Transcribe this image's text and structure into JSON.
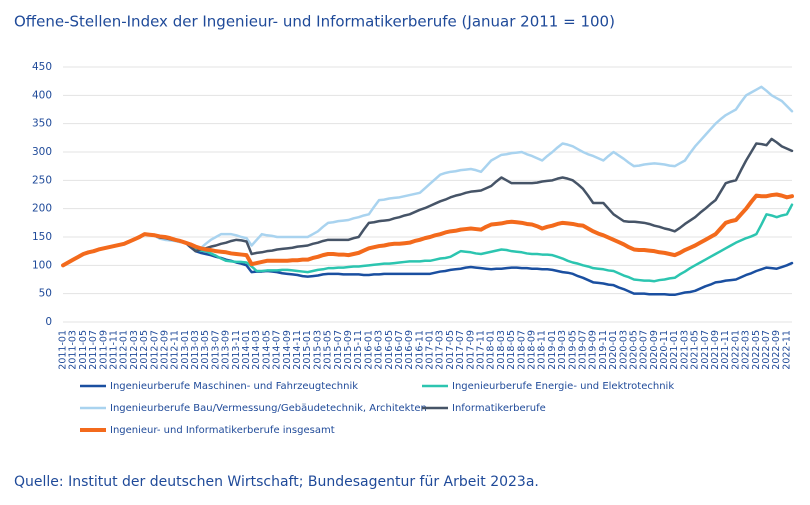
{
  "chart_data": {
    "type": "line",
    "title": "Offene-Stellen-Index der Ingenieur- und Informatikerberufe (Januar 2011 = 100)",
    "source": "Quelle: Institut der deutschen Wirtschaft; Bundesagentur für Arbeit 2023a.",
    "ylim": [
      0,
      450
    ],
    "yticks": [
      0,
      50,
      100,
      150,
      200,
      250,
      300,
      350,
      400,
      450
    ],
    "grid": true,
    "categories": [
      "2011-01",
      null,
      "2011-03",
      null,
      "2011-05",
      null,
      "2011-07",
      null,
      "2011-09",
      null,
      "2011-11",
      null,
      "2012-01",
      null,
      "2012-03",
      null,
      "2012-05",
      null,
      "2012-07",
      null,
      "2012-09",
      null,
      "2012-11",
      null,
      "2013-01",
      null,
      "2013-03",
      null,
      "2013-05",
      null,
      "2013-07",
      null,
      "2013-09",
      null,
      "2013-11",
      null,
      "2014-01",
      null,
      "2014-03",
      null,
      "2014-05",
      null,
      "2014-07",
      null,
      "2014-09",
      null,
      "2014-11",
      null,
      "2015-01",
      null,
      "2015-03",
      null,
      "2015-05",
      null,
      "2015-07",
      null,
      "2015-09",
      null,
      "2015-11",
      null,
      "2016-01",
      null,
      "2016-03",
      null,
      "2016-05",
      null,
      "2016-07",
      null,
      "2016-09",
      null,
      "2016-11",
      null,
      "2017-01",
      null,
      "2017-03",
      null,
      "2017-05",
      null,
      "2017-07",
      null,
      "2017-09",
      null,
      "2017-11",
      null,
      "2018-01",
      null,
      "2018-03",
      null,
      "2018-05",
      null,
      "2018-07",
      null,
      "2018-09",
      null,
      "2018-11",
      null,
      "2019-01",
      null,
      "2019-03",
      null,
      "2019-05",
      null,
      "2019-07",
      null,
      "2019-09",
      null,
      "2019-11",
      null,
      "2020-01",
      null,
      "2020-03",
      null,
      "2020-05",
      null,
      "2020-07",
      null,
      "2020-09",
      null,
      "2020-11",
      null,
      "2021-01",
      null,
      "2021-03",
      null,
      "2021-05",
      null,
      "2021-07",
      null,
      "2021-09",
      null,
      "2021-11",
      null,
      "2022-01",
      null,
      "2022-03",
      null,
      "2022-05",
      null,
      "2022-07",
      null,
      "2022-09",
      null,
      "2022-11",
      null
    ],
    "series": [
      {
        "name": "Ingenieurberufe Maschinen- und Fahrzeugtechnik",
        "color": "#1a4fa0",
        "width": 2.5,
        "values": [
          100,
          105,
          110,
          115,
          120,
          123,
          125,
          128,
          130,
          132,
          134,
          136,
          138,
          142,
          146,
          150,
          155,
          154,
          153,
          151,
          150,
          148,
          145,
          143,
          140,
          132,
          125,
          122,
          120,
          118,
          115,
          113,
          110,
          108,
          105,
          103,
          100,
          88,
          89,
          89,
          90,
          89,
          88,
          86,
          85,
          84,
          83,
          81,
          80,
          81,
          82,
          84,
          85,
          85,
          85,
          84,
          84,
          84,
          84,
          83,
          83,
          84,
          84,
          85,
          85,
          85,
          85,
          85,
          85,
          85,
          85,
          85,
          85,
          87,
          89,
          90,
          92,
          93,
          94,
          96,
          97,
          96,
          95,
          94,
          93,
          94,
          94,
          95,
          96,
          96,
          95,
          95,
          94,
          94,
          93,
          93,
          92,
          90,
          88,
          87,
          85,
          81,
          78,
          74,
          70,
          69,
          68,
          66,
          65,
          61,
          58,
          54,
          50,
          50,
          50,
          49,
          49,
          49,
          49,
          48,
          48,
          50,
          52,
          53,
          55,
          59,
          63,
          66,
          70,
          71,
          73,
          74,
          75,
          79,
          83,
          86,
          90,
          93,
          96,
          95,
          94,
          97,
          100,
          104
        ]
      },
      {
        "name": "Ingenieurberufe Energie- und Elektrotechnik",
        "color": "#2cc5b0",
        "width": 2.5,
        "values": [
          100,
          105,
          110,
          115,
          120,
          123,
          125,
          128,
          130,
          132,
          134,
          136,
          138,
          142,
          146,
          150,
          155,
          154,
          153,
          151,
          150,
          148,
          145,
          143,
          140,
          134,
          128,
          126,
          125,
          121,
          117,
          112,
          108,
          107,
          106,
          106,
          105,
          98,
          90,
          90,
          91,
          91,
          91,
          92,
          92,
          91,
          90,
          89,
          88,
          90,
          92,
          93,
          95,
          95,
          96,
          96,
          97,
          98,
          98,
          99,
          100,
          101,
          102,
          103,
          103,
          104,
          105,
          106,
          107,
          107,
          107,
          108,
          108,
          110,
          112,
          113,
          115,
          120,
          125,
          124,
          123,
          121,
          120,
          122,
          124,
          126,
          128,
          127,
          125,
          124,
          123,
          121,
          120,
          120,
          119,
          119,
          118,
          115,
          112,
          108,
          105,
          103,
          100,
          98,
          95,
          94,
          93,
          91,
          90,
          86,
          82,
          79,
          75,
          74,
          73,
          73,
          72,
          74,
          75,
          77,
          78,
          84,
          89,
          95,
          100,
          105,
          110,
          115,
          120,
          125,
          130,
          135,
          140,
          144,
          148,
          151,
          155,
          172,
          190,
          188,
          185,
          188,
          190,
          207
        ]
      },
      {
        "name": "Ingenieurberufe Bau/Vermessung/Gebäudetechnik, Architekten",
        "color": "#a9d3ef",
        "width": 2.5,
        "values": [
          100,
          105,
          110,
          115,
          120,
          123,
          125,
          128,
          130,
          132,
          134,
          136,
          138,
          142,
          146,
          150,
          155,
          154,
          152,
          147,
          145,
          144,
          143,
          141,
          140,
          137,
          133,
          130,
          138,
          145,
          150,
          155,
          155,
          155,
          153,
          150,
          148,
          135,
          145,
          155,
          153,
          152,
          150,
          150,
          150,
          150,
          150,
          150,
          150,
          155,
          160,
          168,
          175,
          176,
          178,
          179,
          180,
          183,
          185,
          188,
          190,
          203,
          215,
          216,
          218,
          219,
          220,
          222,
          224,
          226,
          228,
          236,
          244,
          252,
          260,
          263,
          265,
          266,
          268,
          269,
          270,
          268,
          265,
          275,
          285,
          290,
          295,
          296,
          298,
          299,
          300,
          296,
          293,
          289,
          285,
          293,
          300,
          308,
          315,
          313,
          310,
          305,
          300,
          296,
          293,
          289,
          285,
          293,
          300,
          294,
          288,
          281,
          275,
          276,
          278,
          279,
          280,
          279,
          278,
          276,
          275,
          280,
          285,
          298,
          310,
          320,
          330,
          340,
          350,
          358,
          365,
          370,
          375,
          388,
          400,
          405,
          410,
          415,
          408,
          400,
          395,
          390,
          381,
          372
        ]
      },
      {
        "name": "Informatikerberufe",
        "color": "#465467",
        "width": 2.5,
        "values": [
          100,
          105,
          110,
          115,
          120,
          123,
          125,
          128,
          130,
          132,
          134,
          136,
          138,
          142,
          146,
          150,
          155,
          154,
          152,
          149,
          148,
          146,
          144,
          142,
          140,
          133,
          125,
          128,
          130,
          133,
          135,
          138,
          140,
          143,
          145,
          144,
          142,
          120,
          122,
          123,
          125,
          126,
          128,
          129,
          130,
          131,
          133,
          134,
          135,
          138,
          140,
          143,
          145,
          145,
          145,
          145,
          145,
          148,
          150,
          163,
          175,
          176,
          178,
          179,
          180,
          183,
          185,
          188,
          190,
          194,
          198,
          201,
          205,
          209,
          213,
          216,
          220,
          223,
          225,
          228,
          230,
          231,
          232,
          236,
          240,
          248,
          255,
          250,
          245,
          245,
          245,
          245,
          245,
          246,
          248,
          249,
          250,
          253,
          255,
          253,
          250,
          243,
          235,
          223,
          210,
          210,
          210,
          200,
          190,
          184,
          178,
          177,
          177,
          176,
          175,
          173,
          170,
          168,
          165,
          163,
          160,
          166,
          173,
          179,
          185,
          193,
          200,
          208,
          215,
          230,
          245,
          248,
          250,
          268,
          285,
          300,
          315,
          314,
          312,
          323,
          317,
          310,
          306,
          302
        ]
      },
      {
        "name": "Ingenieur- und Informatikerberufe insgesamt",
        "color": "#f36a1c",
        "width": 4,
        "values": [
          100,
          105,
          110,
          115,
          120,
          123,
          125,
          128,
          130,
          132,
          134,
          136,
          138,
          142,
          146,
          150,
          155,
          154,
          153,
          151,
          150,
          148,
          145,
          143,
          140,
          137,
          133,
          130,
          128,
          127,
          125,
          124,
          123,
          121,
          120,
          119,
          118,
          102,
          104,
          106,
          108,
          108,
          108,
          108,
          108,
          109,
          109,
          110,
          110,
          113,
          115,
          118,
          120,
          120,
          119,
          119,
          118,
          120,
          122,
          126,
          130,
          132,
          134,
          135,
          137,
          138,
          138,
          139,
          140,
          143,
          145,
          148,
          150,
          153,
          155,
          158,
          160,
          161,
          163,
          164,
          165,
          164,
          163,
          168,
          172,
          173,
          174,
          176,
          177,
          176,
          175,
          173,
          172,
          169,
          165,
          168,
          170,
          173,
          175,
          174,
          173,
          171,
          170,
          165,
          160,
          156,
          153,
          149,
          145,
          141,
          137,
          132,
          128,
          127,
          127,
          126,
          125,
          123,
          122,
          120,
          118,
          122,
          127,
          131,
          135,
          140,
          145,
          150,
          155,
          165,
          175,
          178,
          180,
          190,
          200,
          212,
          223,
          222,
          222,
          224,
          225,
          223,
          220,
          222
        ]
      }
    ]
  }
}
